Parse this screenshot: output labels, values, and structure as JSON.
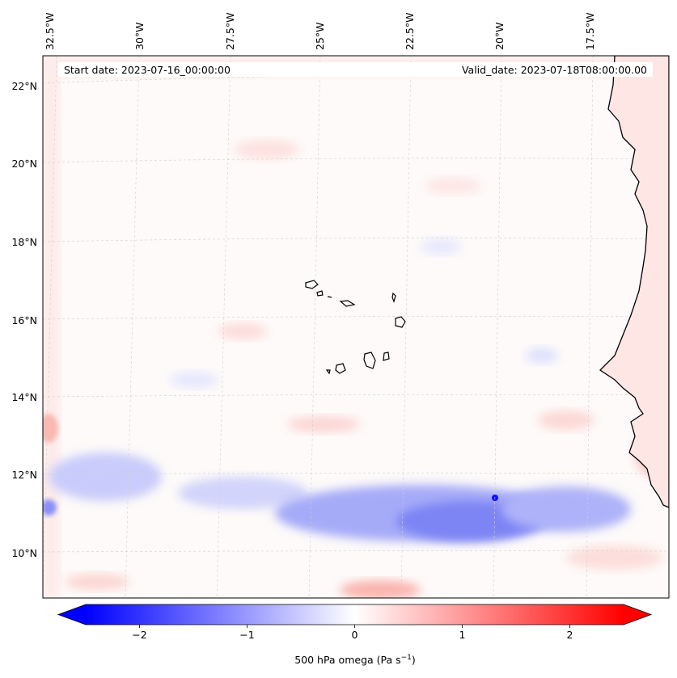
{
  "map": {
    "projection": "geostationary-like",
    "lon_range": [
      -33,
      -15
    ],
    "lat_range": [
      8.8,
      22.8
    ],
    "lat_labels": [
      "22°N",
      "20°N",
      "18°N",
      "16°N",
      "14°N",
      "12°N",
      "10°N"
    ],
    "lon_labels": [
      "32.5°W",
      "30°W",
      "27.5°W",
      "25°W",
      "22.5°W",
      "20°W",
      "17.5°W"
    ],
    "start_date_label": "Start date: 2023-07-16_00:00:00",
    "valid_date_label": "Valid_date: 2023-07-18T08:00:00.00",
    "features": [
      "coastline-west-africa",
      "cape-verde-islands",
      "descending-band-12N"
    ]
  },
  "colorbar": {
    "label_prefix": "500 hPa omega (Pa s",
    "label_exponent": "−1",
    "label_suffix": ")",
    "ticks": [
      "−2",
      "−1",
      "0",
      "1",
      "2"
    ],
    "tick_values": [
      -2,
      -1,
      0,
      1,
      2
    ],
    "range": [
      -2.5,
      2.5
    ],
    "low_color": "#0000ff",
    "mid_color": "#ffffff",
    "high_color": "#ff0000"
  }
}
